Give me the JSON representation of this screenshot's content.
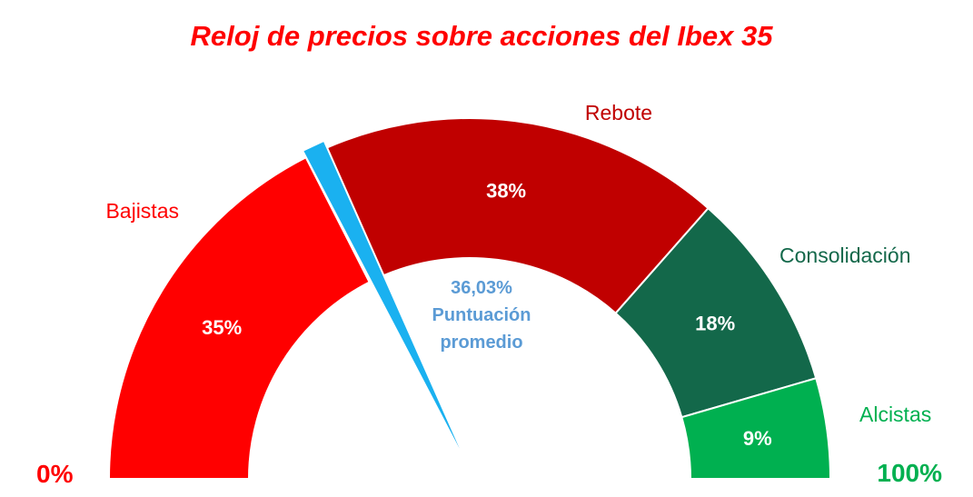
{
  "chart_data": {
    "type": "gauge",
    "title": "Reloj de precios sobre acciones del Ibex 35",
    "min_label": "0%",
    "max_label": "100%",
    "segments": [
      {
        "name": "Bajistas",
        "value": 35,
        "label": "35%",
        "color": "#ff0000",
        "label_color": "#ff0000"
      },
      {
        "name": "Rebote",
        "value": 38,
        "label": "38%",
        "color": "#c00000",
        "label_color": "#c00000"
      },
      {
        "name": "Consolidación",
        "value": 18,
        "label": "18%",
        "color": "#13684a",
        "label_color": "#13684a"
      },
      {
        "name": "Alcistas",
        "value": 9,
        "label": "9%",
        "color": "#00b050",
        "label_color": "#00b050"
      }
    ],
    "needle": {
      "value": 36.03,
      "value_label": "36,03%",
      "caption_line1": "Puntuación",
      "caption_line2": "promedio",
      "color": "#1ab1f0",
      "text_color": "#5b9bd5"
    },
    "colors": {
      "title": "#ff0000",
      "min_label": "#ff0000",
      "max_label": "#00b050"
    }
  }
}
